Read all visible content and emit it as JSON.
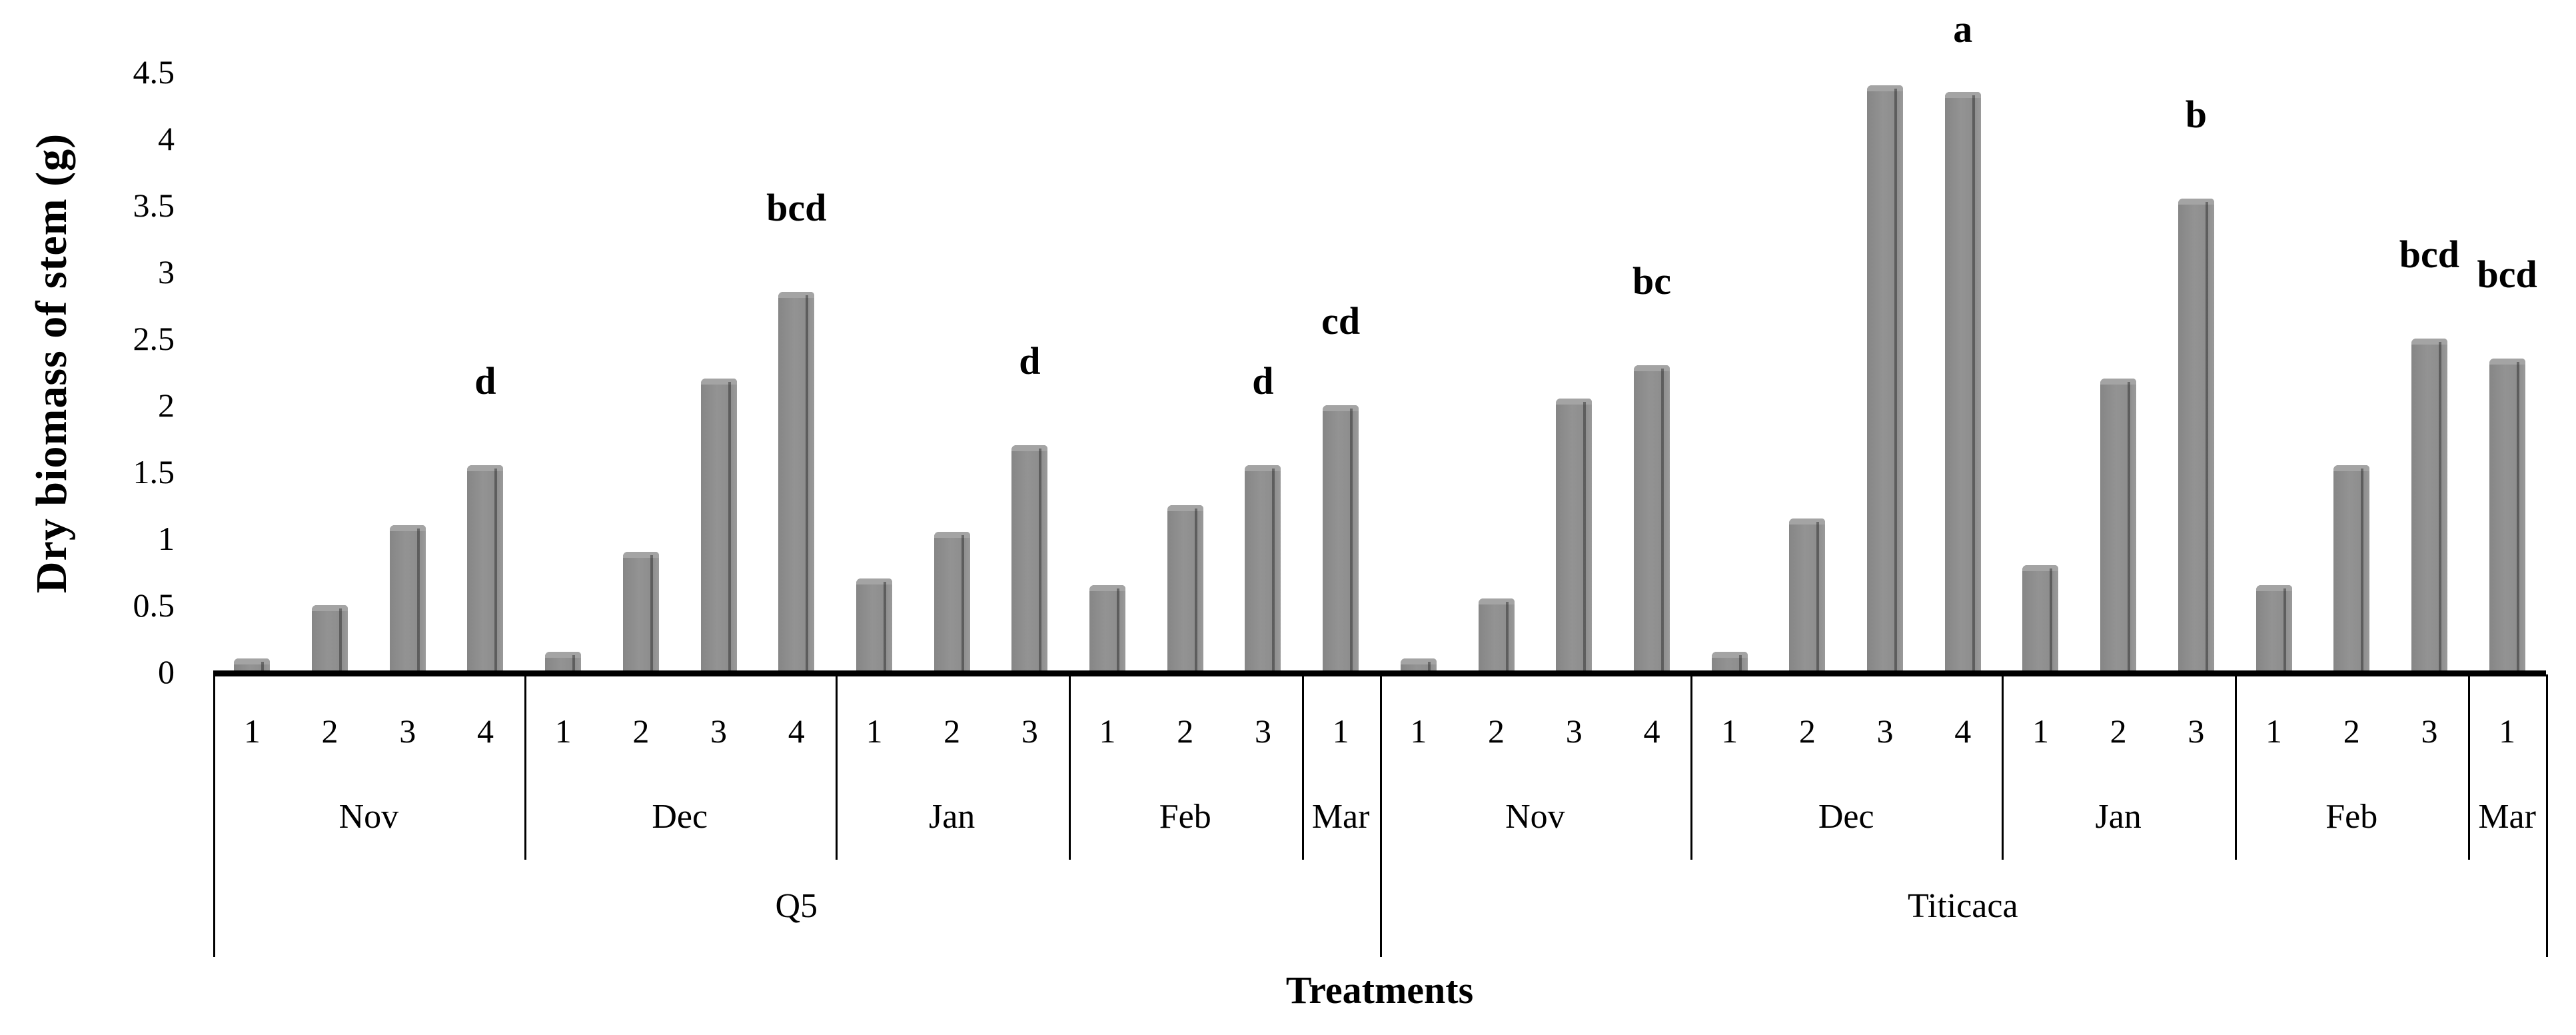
{
  "chart_data": {
    "type": "bar",
    "title": "",
    "ylabel": "Dry biomass  of stem (g)",
    "xlabel": "Treatments",
    "ylim": [
      0,
      4.5
    ],
    "ytick_labels": [
      "0",
      "0.5",
      "1",
      "1.5",
      "2",
      "2.5",
      "3",
      "3.5",
      "4",
      "4.5"
    ],
    "grid": "off",
    "legend": "none",
    "bar_color": "#8d8d8d",
    "axis_color": "#000000",
    "cultivars": [
      {
        "name": "Q5",
        "months": [
          {
            "name": "Nov",
            "treatments": [
              "1",
              "2",
              "3",
              "4"
            ],
            "values": [
              0.1,
              0.5,
              1.1,
              1.55
            ],
            "letters": [
              "",
              "",
              "",
              "d"
            ]
          },
          {
            "name": "Dec",
            "treatments": [
              "1",
              "2",
              "3",
              "4"
            ],
            "values": [
              0.15,
              0.9,
              2.2,
              2.85
            ],
            "letters": [
              "",
              "",
              "",
              "bcd"
            ]
          },
          {
            "name": "Jan",
            "treatments": [
              "1",
              "2",
              "3"
            ],
            "values": [
              0.7,
              1.05,
              1.7
            ],
            "letters": [
              "",
              "",
              "d"
            ]
          },
          {
            "name": "Feb",
            "treatments": [
              "1",
              "2",
              "3"
            ],
            "values": [
              0.65,
              1.25,
              1.55
            ],
            "letters": [
              "",
              "",
              "d"
            ]
          },
          {
            "name": "Mar",
            "treatments": [
              "1"
            ],
            "values": [
              2.0
            ],
            "letters": [
              "cd"
            ]
          }
        ]
      },
      {
        "name": "Titicaca",
        "months": [
          {
            "name": "Nov",
            "treatments": [
              "1",
              "2",
              "3",
              "4"
            ],
            "values": [
              0.1,
              0.55,
              2.05,
              2.3
            ],
            "letters": [
              "",
              "",
              "",
              "bc"
            ]
          },
          {
            "name": "Dec",
            "treatments": [
              "1",
              "2",
              "3",
              "4"
            ],
            "values": [
              0.15,
              1.15,
              4.4,
              4.35
            ],
            "letters": [
              "",
              "",
              "",
              "a"
            ]
          },
          {
            "name": "Jan",
            "treatments": [
              "1",
              "2",
              "3"
            ],
            "values": [
              0.8,
              2.2,
              3.55
            ],
            "letters": [
              "",
              "",
              "b"
            ]
          },
          {
            "name": "Feb",
            "treatments": [
              "1",
              "2",
              "3"
            ],
            "values": [
              0.65,
              1.55,
              2.5
            ],
            "letters": [
              "",
              "",
              "bcd"
            ]
          },
          {
            "name": "Mar",
            "treatments": [
              "1"
            ],
            "values": [
              2.35
            ],
            "letters": [
              "bcd"
            ]
          }
        ]
      }
    ]
  }
}
